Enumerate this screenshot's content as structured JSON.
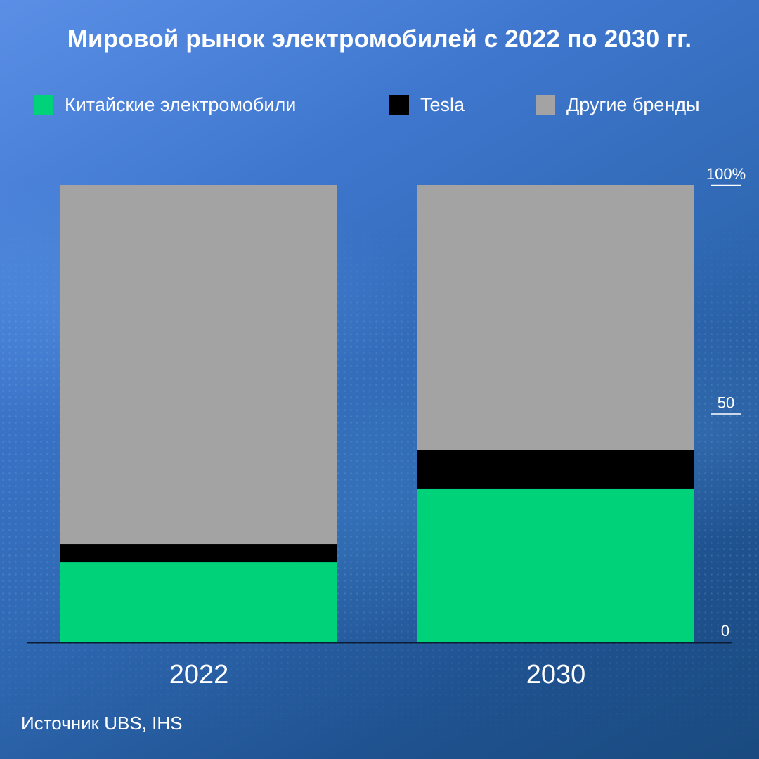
{
  "title": "Мировой рынок электромобилей с 2022 по 2030 гг.",
  "source": "Источник UBS, IHS",
  "colors": {
    "chinese": "#00d27a",
    "tesla": "#000000",
    "other": "#a3a3a3"
  },
  "legend": [
    {
      "label": "Китайские электромобили",
      "color": "#00d27a"
    },
    {
      "label": "Tesla",
      "color": "#000000"
    },
    {
      "label": "Другие бренды",
      "color": "#a3a3a3"
    }
  ],
  "chart_data": {
    "type": "bar",
    "stacked": true,
    "title": "Мировой рынок электромобилей с 2022 по 2030 гг.",
    "categories": [
      "2022",
      "2030"
    ],
    "series": [
      {
        "name": "Китайские электромобили",
        "color": "#00d27a",
        "values": [
          17.5,
          33.5
        ]
      },
      {
        "name": "Tesla",
        "color": "#000000",
        "values": [
          4,
          8.5
        ]
      },
      {
        "name": "Другие бренды",
        "color": "#a3a3a3",
        "values": [
          78.5,
          58
        ]
      }
    ],
    "ylim": [
      0,
      100
    ],
    "y_ticks": [
      {
        "value": 0,
        "label": "0"
      },
      {
        "value": 50,
        "label": "50"
      },
      {
        "value": 100,
        "label": "100%"
      }
    ],
    "grid": false,
    "legend_position": "top"
  }
}
